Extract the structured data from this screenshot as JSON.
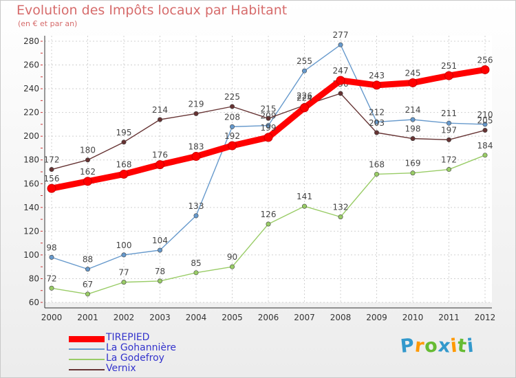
{
  "header": {
    "title": "Evolution des Impôts locaux par Habitant",
    "subtitle": "(en € et par an)"
  },
  "chart_data": {
    "type": "line",
    "title": "Evolution des Impôts locaux par Habitant",
    "subtitle": "(en € et par an)",
    "xlabel": "",
    "ylabel": "",
    "categories": [
      "2000",
      "2001",
      "2002",
      "2003",
      "2004",
      "2005",
      "2006",
      "2007",
      "2008",
      "2009",
      "2010",
      "2011",
      "2012"
    ],
    "ylim": [
      60,
      280
    ],
    "yticks": [
      60,
      80,
      100,
      120,
      140,
      160,
      180,
      200,
      220,
      240,
      260,
      280
    ],
    "grid": true,
    "legend_position": "bottom-left",
    "series": [
      {
        "name": "TIREPIED",
        "color": "#ff0000",
        "values": [
          156,
          162,
          168,
          176,
          183,
          192,
          199,
          224,
          247,
          243,
          245,
          251,
          256
        ]
      },
      {
        "name": "La Gohannière",
        "color": "#6699cc",
        "values": [
          98,
          88,
          100,
          104,
          133,
          208,
          209,
          255,
          277,
          212,
          214,
          211,
          210
        ]
      },
      {
        "name": "La Godefroy",
        "color": "#99cc66",
        "values": [
          72,
          67,
          77,
          78,
          85,
          90,
          126,
          141,
          132,
          168,
          169,
          172,
          184
        ]
      },
      {
        "name": "Vernix",
        "color": "#663333",
        "values": [
          172,
          180,
          195,
          214,
          219,
          225,
          215,
          226,
          236,
          203,
          198,
          197,
          205
        ]
      }
    ]
  },
  "logo": {
    "letters": [
      "P",
      "r",
      "o",
      "x",
      "i",
      "t",
      "i"
    ],
    "colors": [
      "#3399cc",
      "#ff9900",
      "#66bb33",
      "#3399cc",
      "#ff9900",
      "#66bb33",
      "#3399cc"
    ]
  }
}
